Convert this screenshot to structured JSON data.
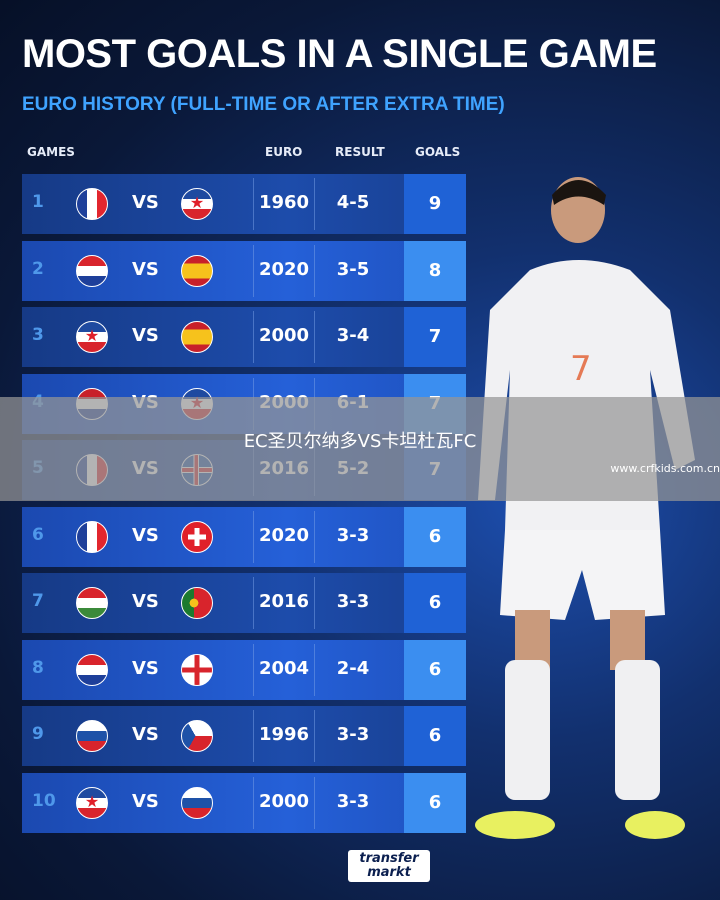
{
  "title": "MOST GOALS IN A SINGLE GAME",
  "subtitle": "EURO HISTORY (FULL-TIME OR AFTER EXTRA TIME)",
  "headers": {
    "games": "GAMES",
    "euro": "EURO",
    "result": "RESULT",
    "goals": "GOALS"
  },
  "vs": "VS",
  "rows": [
    {
      "rank": "1",
      "team1": "france",
      "team2": "yugoslavia",
      "euro": "1960",
      "result": "4-5",
      "goals": "9"
    },
    {
      "rank": "2",
      "team1": "croatia",
      "team2": "spain",
      "euro": "2020",
      "result": "3-5",
      "goals": "8"
    },
    {
      "rank": "3",
      "team1": "yugoslavia",
      "team2": "spain",
      "euro": "2000",
      "result": "3-4",
      "goals": "7"
    },
    {
      "rank": "4",
      "team1": "netherlands",
      "team2": "yugoslavia",
      "euro": "2000",
      "result": "6-1",
      "goals": "7"
    },
    {
      "rank": "5",
      "team1": "france",
      "team2": "iceland",
      "euro": "2016",
      "result": "5-2",
      "goals": "7"
    },
    {
      "rank": "6",
      "team1": "france",
      "team2": "switzerland",
      "euro": "2020",
      "result": "3-3",
      "goals": "6"
    },
    {
      "rank": "7",
      "team1": "hungary",
      "team2": "portugal",
      "euro": "2016",
      "result": "3-3",
      "goals": "6"
    },
    {
      "rank": "8",
      "team1": "croatia",
      "team2": "england",
      "euro": "2004",
      "result": "2-4",
      "goals": "6"
    },
    {
      "rank": "9",
      "team1": "russia",
      "team2": "czech-republic",
      "euro": "1996",
      "result": "3-3",
      "goals": "6"
    },
    {
      "rank": "10",
      "team1": "yugoslavia",
      "team2": "slovenia",
      "euro": "2000",
      "result": "3-3",
      "goals": "6"
    }
  ],
  "overlay": {
    "text": "EC圣贝尔纳多VS卡坦杜瓦FC",
    "watermark": "www.crfkids.com.cn"
  },
  "logo": {
    "line1": "transfer",
    "line2": "markt"
  }
}
